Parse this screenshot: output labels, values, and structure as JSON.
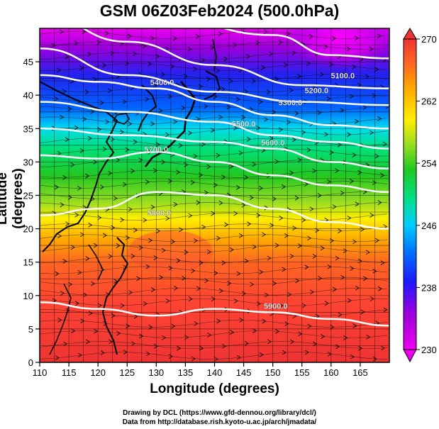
{
  "title": "GSM 06Z03Feb2024 (500.0hPa)",
  "xlabel": "Longitude (degrees)",
  "ylabel": "Latitude  (degrees)",
  "x_ticks": [
    "110",
    "115",
    "120",
    "125",
    "130",
    "135",
    "140",
    "145",
    "150",
    "155",
    "160",
    "165"
  ],
  "y_ticks": [
    "0",
    "5",
    "10",
    "15",
    "20",
    "25",
    "30",
    "35",
    "40",
    "45"
  ],
  "colorbar_ticks": [
    "230",
    "238",
    "246",
    "254",
    "262",
    "270"
  ],
  "contour_labels": [
    "5400.0",
    "5300.0",
    "5200.0",
    "5100.0",
    "5500.0",
    "5600.0",
    "5700.0",
    "5800.0",
    "5900.0"
  ],
  "credits": {
    "line1": "Drawing by DCL (https://www.gfd-dennou.org/library/dcl/)",
    "line2": "Data from http://database.rish.kyoto-u.ac.jp/arch/jmadata/"
  },
  "chart_data": {
    "type": "heatmap",
    "field": "temperature (K) with geopotential height contours (m) and streamlines",
    "xlim": [
      110,
      170
    ],
    "ylim": [
      0,
      50
    ],
    "colorbar_range": [
      230,
      270
    ],
    "colorbar_colors": [
      "#ee00ee",
      "#8800cc",
      "#1a1aff",
      "#0066ff",
      "#00ccff",
      "#00e099",
      "#22c622",
      "#88dd22",
      "#ffff00",
      "#ffaa00",
      "#ff5522",
      "#ee3333"
    ],
    "contours": [
      {
        "level": 5100.0,
        "lat_at_lon": [
          [
            130,
            52
          ],
          [
            150,
            49
          ],
          [
            160,
            46
          ],
          [
            170,
            45.5
          ]
        ]
      },
      {
        "level": 5200.0,
        "lat_at_lon": [
          [
            110,
            52
          ],
          [
            125,
            48
          ],
          [
            140,
            44.5
          ],
          [
            155,
            41.5
          ],
          [
            170,
            41
          ]
        ]
      },
      {
        "level": 5300.0,
        "lat_at_lon": [
          [
            110,
            47
          ],
          [
            125,
            43
          ],
          [
            140,
            40.5
          ],
          [
            155,
            39
          ],
          [
            170,
            38.5
          ]
        ]
      },
      {
        "level": 5400.0,
        "lat_at_lon": [
          [
            110,
            43
          ],
          [
            120,
            42
          ],
          [
            130,
            41
          ],
          [
            140,
            39
          ],
          [
            150,
            37
          ],
          [
            160,
            35.5
          ],
          [
            170,
            35
          ]
        ]
      },
      {
        "level": 5500.0,
        "lat_at_lon": [
          [
            110,
            39
          ],
          [
            125,
            37.5
          ],
          [
            140,
            36
          ],
          [
            150,
            34
          ],
          [
            160,
            33
          ],
          [
            170,
            32
          ]
        ]
      },
      {
        "level": 5600.0,
        "lat_at_lon": [
          [
            110,
            35
          ],
          [
            125,
            34
          ],
          [
            140,
            33
          ],
          [
            150,
            32
          ],
          [
            160,
            30
          ],
          [
            170,
            29
          ]
        ]
      },
      {
        "level": 5700.0,
        "lat_at_lon": [
          [
            110,
            31
          ],
          [
            120,
            30.5
          ],
          [
            130,
            31.5
          ],
          [
            140,
            30
          ],
          [
            150,
            28
          ],
          [
            160,
            26.5
          ],
          [
            170,
            25.5
          ]
        ]
      },
      {
        "level": 5800.0,
        "lat_at_lon": [
          [
            110,
            22
          ],
          [
            120,
            23
          ],
          [
            130,
            25.5
          ],
          [
            140,
            25
          ],
          [
            150,
            23
          ],
          [
            160,
            21
          ],
          [
            170,
            20
          ]
        ]
      },
      {
        "level": 5900.0,
        "lat_at_lon": [
          [
            110,
            9
          ],
          [
            120,
            8
          ],
          [
            130,
            7
          ],
          [
            140,
            8
          ],
          [
            150,
            7.5
          ],
          [
            160,
            6.5
          ],
          [
            170,
            5.5
          ]
        ]
      }
    ],
    "contour_label_positions": [
      {
        "text": "5400.0",
        "lon": 131,
        "lat": 41.5
      },
      {
        "text": "5300.0",
        "lon": 153,
        "lat": 38.5
      },
      {
        "text": "5200.0",
        "lon": 157.5,
        "lat": 40.3
      },
      {
        "text": "5100.0",
        "lon": 162,
        "lat": 42.5
      },
      {
        "text": "5500.0",
        "lon": 145,
        "lat": 35.3
      },
      {
        "text": "5600.0",
        "lon": 150,
        "lat": 32.5
      },
      {
        "text": "5700.0",
        "lon": 130,
        "lat": 31.5
      },
      {
        "text": "5800.0",
        "lon": 130.5,
        "lat": 22
      },
      {
        "text": "5900.0",
        "lon": 150.5,
        "lat": 8
      }
    ]
  }
}
